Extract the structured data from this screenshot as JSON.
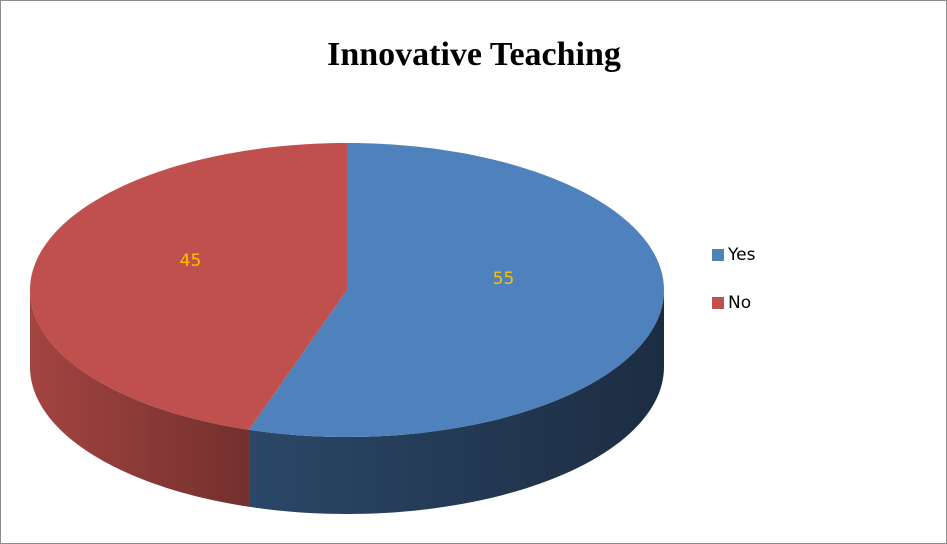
{
  "chart_data": {
    "type": "pie",
    "title": "Innovative Teaching",
    "categories": [
      "Yes",
      "No"
    ],
    "values": [
      55,
      45
    ],
    "colors": [
      "#4f81bd",
      "#c0504d"
    ],
    "legend": "right",
    "style": "3d"
  }
}
